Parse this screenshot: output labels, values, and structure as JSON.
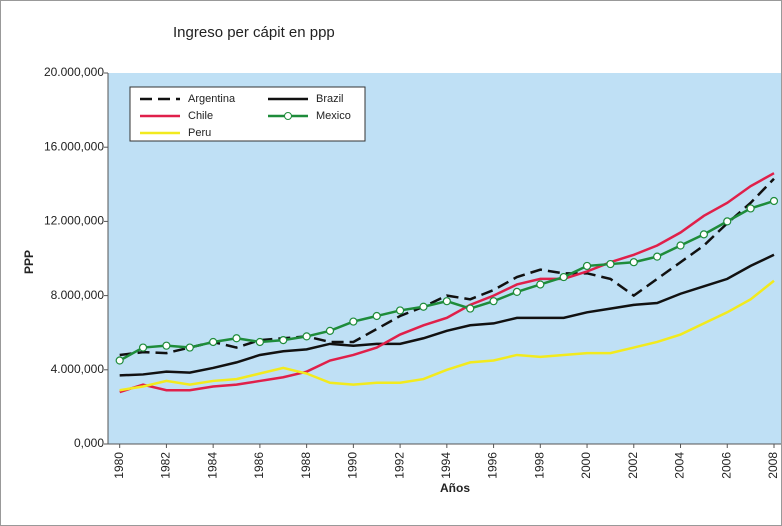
{
  "chart_data": {
    "type": "line",
    "title": "Ingreso per cápit en ppp",
    "x_label": "Años",
    "y_label": "PPP",
    "x": [
      1980,
      1981,
      1982,
      1983,
      1984,
      1985,
      1986,
      1987,
      1988,
      1989,
      1990,
      1991,
      1992,
      1993,
      1994,
      1995,
      1996,
      1997,
      1998,
      1999,
      2000,
      2001,
      2002,
      2003,
      2004,
      2005,
      2006,
      2007,
      2008
    ],
    "xlim": [
      1979.5,
      2008.3
    ],
    "xticks": [
      1980,
      1982,
      1984,
      1986,
      1988,
      1990,
      1992,
      1994,
      1996,
      1998,
      2000,
      2002,
      2004,
      2006,
      2008
    ],
    "ylim": [
      0,
      20000
    ],
    "yticks": [
      {
        "value": 0,
        "label": "0,000"
      },
      {
        "value": 4000,
        "label": "4.000,000"
      },
      {
        "value": 8000,
        "label": "8.000,000"
      },
      {
        "value": 12000,
        "label": "12.000,000"
      },
      {
        "value": 16000,
        "label": "16.000,000"
      },
      {
        "value": 20000,
        "label": "20.000,000"
      }
    ],
    "background": "#bfe0f5",
    "series": [
      {
        "name": "Argentina",
        "color": "#111111",
        "dashed": true,
        "values": [
          4800,
          4950,
          4900,
          5200,
          5500,
          5200,
          5600,
          5700,
          5800,
          5500,
          5500,
          6200,
          6900,
          7400,
          8000,
          7800,
          8300,
          9000,
          9400,
          9200,
          9200,
          8900,
          8000,
          8900,
          9800,
          10700,
          11900,
          13000,
          14300
        ]
      },
      {
        "name": "Brazil",
        "color": "#111111",
        "values": [
          3700,
          3750,
          3900,
          3850,
          4100,
          4400,
          4800,
          5000,
          5100,
          5400,
          5300,
          5400,
          5400,
          5700,
          6100,
          6400,
          6500,
          6800,
          6800,
          6800,
          7100,
          7300,
          7500,
          7600,
          8100,
          8500,
          8900,
          9600,
          10200
        ]
      },
      {
        "name": "Chile",
        "color": "#e0204a",
        "values": [
          2800,
          3200,
          2900,
          2900,
          3100,
          3200,
          3400,
          3600,
          3900,
          4500,
          4800,
          5200,
          5900,
          6400,
          6800,
          7500,
          8000,
          8600,
          8900,
          8900,
          9300,
          9800,
          10200,
          10700,
          11400,
          12300,
          13000,
          13900,
          14600
        ]
      },
      {
        "name": "Mexico",
        "color": "#1e8c3a",
        "markers": true,
        "values": [
          4500,
          5200,
          5300,
          5200,
          5500,
          5700,
          5500,
          5600,
          5800,
          6100,
          6600,
          6900,
          7200,
          7400,
          7700,
          7300,
          7700,
          8200,
          8600,
          9000,
          9600,
          9700,
          9800,
          10100,
          10700,
          11300,
          12000,
          12700,
          13100
        ]
      },
      {
        "name": "Peru",
        "color": "#f2ea1e",
        "values": [
          2900,
          3100,
          3400,
          3200,
          3400,
          3500,
          3800,
          4100,
          3800,
          3300,
          3200,
          3300,
          3300,
          3500,
          4000,
          4400,
          4500,
          4800,
          4700,
          4800,
          4900,
          4900,
          5200,
          5500,
          5900,
          6500,
          7100,
          7800,
          8800
        ]
      }
    ]
  }
}
